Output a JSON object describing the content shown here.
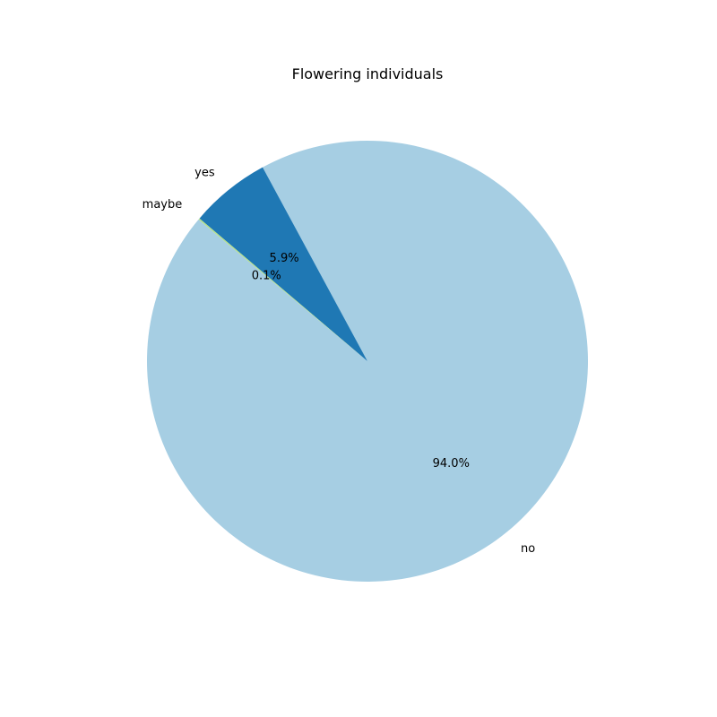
{
  "chart_data": {
    "type": "pie",
    "title": "Flowering individuals",
    "slices": [
      {
        "label": "no",
        "value": 94.0,
        "pct_label": "94.0%",
        "color": "#a6cee3"
      },
      {
        "label": "yes",
        "value": 5.9,
        "pct_label": "5.9%",
        "color": "#1f78b4"
      },
      {
        "label": "maybe",
        "value": 0.1,
        "pct_label": "0.1%",
        "color": "#b2df8a"
      }
    ],
    "legend": "none"
  }
}
